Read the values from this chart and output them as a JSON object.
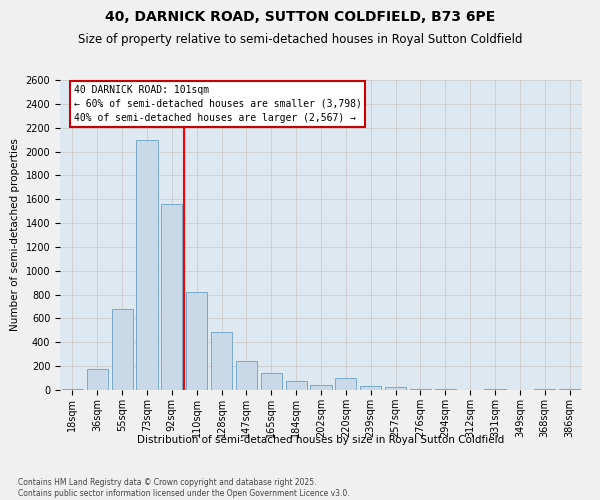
{
  "title": "40, DARNICK ROAD, SUTTON COLDFIELD, B73 6PE",
  "subtitle": "Size of property relative to semi-detached houses in Royal Sutton Coldfield",
  "xlabel": "Distribution of semi-detached houses by size in Royal Sutton Coldfield",
  "ylabel": "Number of semi-detached properties",
  "categories": [
    "18sqm",
    "36sqm",
    "55sqm",
    "73sqm",
    "92sqm",
    "110sqm",
    "128sqm",
    "147sqm",
    "165sqm",
    "184sqm",
    "202sqm",
    "220sqm",
    "239sqm",
    "257sqm",
    "276sqm",
    "294sqm",
    "312sqm",
    "331sqm",
    "349sqm",
    "368sqm",
    "386sqm"
  ],
  "values": [
    5,
    180,
    680,
    2100,
    1560,
    820,
    490,
    240,
    145,
    75,
    45,
    100,
    30,
    25,
    10,
    5,
    0,
    5,
    0,
    5,
    5
  ],
  "bar_color": "#c9d9e8",
  "bar_edge_color": "#7aaac8",
  "red_line_x": 4.5,
  "annotation_title": "40 DARNICK ROAD: 101sqm",
  "annotation_line1": "← 60% of semi-detached houses are smaller (3,798)",
  "annotation_line2": "40% of semi-detached houses are larger (2,567) →",
  "annotation_box_color": "#ffffff",
  "annotation_box_edge": "#cc0000",
  "ylim": [
    0,
    2600
  ],
  "yticks": [
    0,
    200,
    400,
    600,
    800,
    1000,
    1200,
    1400,
    1600,
    1800,
    2000,
    2200,
    2400,
    2600
  ],
  "grid_color": "#cccccc",
  "bg_color": "#dde8f0",
  "fig_bg_color": "#f0f0f0",
  "footnote": "Contains HM Land Registry data © Crown copyright and database right 2025.\nContains public sector information licensed under the Open Government Licence v3.0.",
  "title_fontsize": 10,
  "subtitle_fontsize": 8.5,
  "tick_fontsize": 7,
  "ylabel_fontsize": 7.5,
  "xlabel_fontsize": 7.5,
  "annot_fontsize": 7
}
